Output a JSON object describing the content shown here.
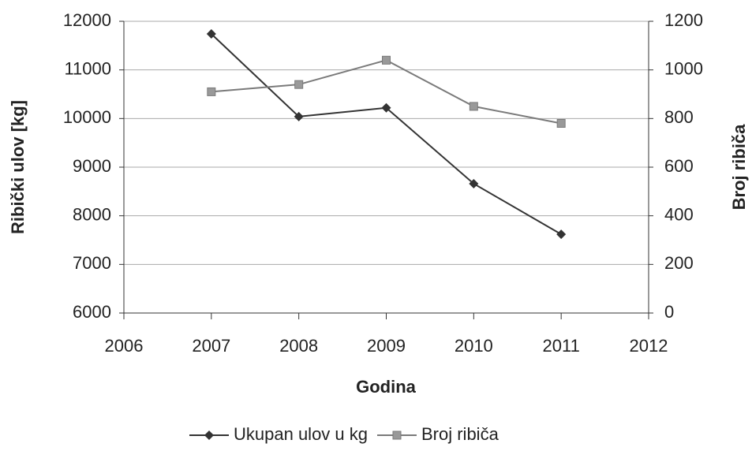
{
  "chart_data": {
    "type": "line",
    "x": [
      2007,
      2008,
      2009,
      2010,
      2011
    ],
    "series": [
      {
        "name": "Ukupan ulov u kg",
        "color": "#333333",
        "marker": "diamond",
        "values": [
          11740,
          10040,
          10220,
          8660,
          7620
        ]
      },
      {
        "name": "Broj ribiča",
        "color": "#7a7a7a",
        "marker": "square",
        "axis": "y2",
        "values": [
          910,
          940,
          1040,
          850,
          780
        ]
      }
    ],
    "xlim": [
      2006,
      2012
    ],
    "xticks": [
      2006,
      2007,
      2008,
      2009,
      2010,
      2011,
      2012
    ],
    "ylim": [
      6000,
      12000
    ],
    "yticks": [
      6000,
      7000,
      8000,
      9000,
      10000,
      11000,
      12000
    ],
    "y2lim": [
      0,
      1200
    ],
    "y2ticks": [
      0,
      200,
      400,
      600,
      800,
      1000,
      1200
    ],
    "xlabel": "Godina",
    "ylabel": "Ribički ulov [kg]",
    "y2label": "Broj ribiča",
    "grid": true,
    "legend": "bottom"
  }
}
